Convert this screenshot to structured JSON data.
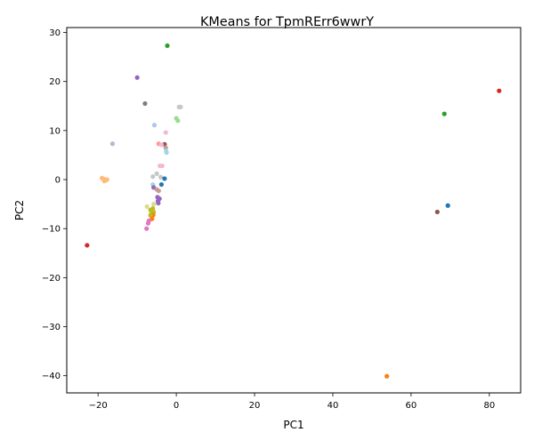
{
  "chart_data": {
    "type": "scatter",
    "title": "KMeans for TpmRErr6wwrY",
    "xlabel": "PC1",
    "ylabel": "PC2",
    "xlim": [
      -28,
      88
    ],
    "ylim": [
      -43.5,
      31
    ],
    "xticks": [
      -20,
      0,
      20,
      40,
      60,
      80
    ],
    "yticks": [
      30,
      20,
      10,
      0,
      -10,
      -20,
      -30,
      -40
    ],
    "xtick_labels": [
      "−20",
      "0",
      "20",
      "40",
      "60",
      "80"
    ],
    "ytick_labels": [
      "30",
      "20",
      "10",
      "0",
      "−10",
      "−20",
      "−30",
      "−40"
    ],
    "grid": false,
    "legend": "none",
    "points": [
      {
        "x": -2.3,
        "y": 27.3,
        "color": "#2ca02c"
      },
      {
        "x": -10.0,
        "y": 20.8,
        "color": "#9467bd"
      },
      {
        "x": -8.0,
        "y": 15.5,
        "color": "#7f7f7f"
      },
      {
        "x": 0.7,
        "y": 14.8,
        "color": "#c7c7c7"
      },
      {
        "x": 1.1,
        "y": 14.8,
        "color": "#c7c7c7"
      },
      {
        "x": 0.0,
        "y": 12.5,
        "color": "#98df8a"
      },
      {
        "x": 0.4,
        "y": 12.0,
        "color": "#98df8a"
      },
      {
        "x": -5.6,
        "y": 11.1,
        "color": "#aec7e8"
      },
      {
        "x": -2.7,
        "y": 9.6,
        "color": "#f7b6d2"
      },
      {
        "x": -16.3,
        "y": 7.3,
        "color": "#c5b0d5"
      },
      {
        "x": -4.5,
        "y": 7.3,
        "color": "#ff9896"
      },
      {
        "x": -3.0,
        "y": 7.2,
        "color": "#8c564b"
      },
      {
        "x": -3.8,
        "y": 7.1,
        "color": "#f7b6d2"
      },
      {
        "x": -2.7,
        "y": 6.5,
        "color": "#c49c94"
      },
      {
        "x": -2.6,
        "y": 5.8,
        "color": "#9edae5"
      },
      {
        "x": -2.5,
        "y": 5.5,
        "color": "#9edae5"
      },
      {
        "x": -4.2,
        "y": 2.8,
        "color": "#f7b6d2"
      },
      {
        "x": -3.6,
        "y": 2.8,
        "color": "#f7b6d2"
      },
      {
        "x": -5.0,
        "y": 1.2,
        "color": "#c7c7c7"
      },
      {
        "x": -6.0,
        "y": 0.6,
        "color": "#c7c7c7"
      },
      {
        "x": -4.0,
        "y": 0.5,
        "color": "#c7c7c7"
      },
      {
        "x": -3.0,
        "y": 0.2,
        "color": "#1f77b4"
      },
      {
        "x": -19.0,
        "y": 0.3,
        "color": "#ffbb78"
      },
      {
        "x": -18.5,
        "y": 0.1,
        "color": "#ffbb78"
      },
      {
        "x": -18.0,
        "y": -0.1,
        "color": "#ffbb78"
      },
      {
        "x": -17.7,
        "y": 0.0,
        "color": "#ffbb78"
      },
      {
        "x": -18.4,
        "y": -0.3,
        "color": "#ffbb78"
      },
      {
        "x": -6.0,
        "y": -1.0,
        "color": "#9edae5"
      },
      {
        "x": -3.8,
        "y": -1.0,
        "color": "#1f77b4"
      },
      {
        "x": -5.8,
        "y": -1.6,
        "color": "#9467bd"
      },
      {
        "x": -5.0,
        "y": -2.0,
        "color": "#c49c94"
      },
      {
        "x": -4.5,
        "y": -2.3,
        "color": "#c49c94"
      },
      {
        "x": -4.8,
        "y": -3.6,
        "color": "#9467bd"
      },
      {
        "x": -4.3,
        "y": -3.9,
        "color": "#9467bd"
      },
      {
        "x": -4.7,
        "y": -4.4,
        "color": "#9467bd"
      },
      {
        "x": -4.6,
        "y": -4.8,
        "color": "#9467bd"
      },
      {
        "x": -5.8,
        "y": -5.0,
        "color": "#dbdb8d"
      },
      {
        "x": -7.5,
        "y": -5.5,
        "color": "#dbdb8d"
      },
      {
        "x": -6.0,
        "y": -5.9,
        "color": "#bcbd22"
      },
      {
        "x": -6.6,
        "y": -6.2,
        "color": "#bcbd22"
      },
      {
        "x": -5.8,
        "y": -6.6,
        "color": "#bcbd22"
      },
      {
        "x": -6.4,
        "y": -7.0,
        "color": "#bcbd22"
      },
      {
        "x": -5.9,
        "y": -7.2,
        "color": "#ff7f0e"
      },
      {
        "x": -6.6,
        "y": -7.3,
        "color": "#bcbd22"
      },
      {
        "x": -6.2,
        "y": -8.0,
        "color": "#ff7f0e"
      },
      {
        "x": -7.0,
        "y": -8.4,
        "color": "#e377c2"
      },
      {
        "x": -7.2,
        "y": -8.9,
        "color": "#e377c2"
      },
      {
        "x": -7.6,
        "y": -10.0,
        "color": "#e377c2"
      },
      {
        "x": -22.8,
        "y": -13.4,
        "color": "#d62728"
      },
      {
        "x": 53.8,
        "y": -40.1,
        "color": "#ff7f0e"
      },
      {
        "x": 66.7,
        "y": -6.6,
        "color": "#8c564b"
      },
      {
        "x": 69.4,
        "y": -5.3,
        "color": "#1f77b4"
      },
      {
        "x": 68.5,
        "y": 13.4,
        "color": "#2ca02c"
      },
      {
        "x": 82.5,
        "y": 18.1,
        "color": "#d62728"
      }
    ]
  }
}
